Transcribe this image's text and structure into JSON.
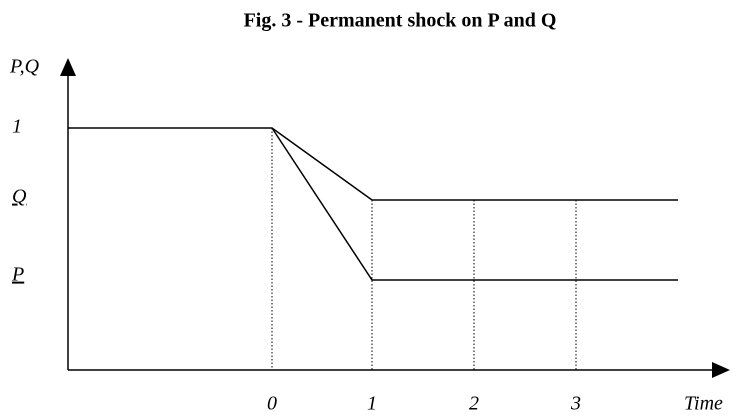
{
  "title": "Fig. 3 - Permanent shock on P and Q",
  "y_axis_label": "P,Q",
  "x_axis_label": "Time",
  "y_labels": [
    "1",
    "Q",
    "P"
  ],
  "x_labels": [
    "0",
    "1",
    "2",
    "3"
  ]
}
